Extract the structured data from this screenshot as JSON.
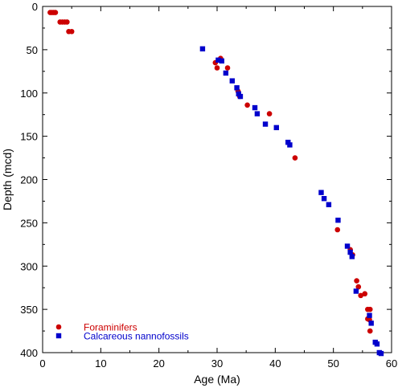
{
  "chart_data": {
    "type": "scatter",
    "title": "",
    "xlabel": "Age (Ma)",
    "ylabel": "Depth (mcd)",
    "xlim": [
      0,
      60
    ],
    "ylim": [
      0,
      400
    ],
    "y_inverted": true,
    "x_ticks": [
      0,
      10,
      20,
      30,
      40,
      50,
      60
    ],
    "y_ticks": [
      0,
      50,
      100,
      150,
      200,
      250,
      300,
      350,
      400
    ],
    "grid": false,
    "legend_position": "bottom-left",
    "series": [
      {
        "name": "Foraminifers",
        "marker": "circle",
        "color": "#cc0000",
        "points": [
          [
            1.3,
            7
          ],
          [
            1.6,
            7
          ],
          [
            1.9,
            7
          ],
          [
            2.2,
            7
          ],
          [
            3.0,
            18
          ],
          [
            3.4,
            18
          ],
          [
            3.8,
            18
          ],
          [
            4.2,
            18
          ],
          [
            4.5,
            29
          ],
          [
            5.0,
            29
          ],
          [
            29.7,
            65
          ],
          [
            30.0,
            71
          ],
          [
            30.6,
            60
          ],
          [
            31.8,
            71
          ],
          [
            33.6,
            98
          ],
          [
            33.9,
            104
          ],
          [
            35.2,
            114
          ],
          [
            39.0,
            124
          ],
          [
            43.4,
            175
          ],
          [
            50.7,
            258
          ],
          [
            52.9,
            281
          ],
          [
            53.3,
            287
          ],
          [
            54.0,
            317
          ],
          [
            54.3,
            324
          ],
          [
            54.7,
            334
          ],
          [
            55.4,
            332
          ],
          [
            55.9,
            350
          ],
          [
            56.3,
            350
          ],
          [
            55.9,
            361
          ],
          [
            56.2,
            362
          ],
          [
            56.3,
            375
          ]
        ]
      },
      {
        "name": "Calcareous nannofossils",
        "marker": "square",
        "color": "#0000cc",
        "points": [
          [
            27.5,
            49
          ],
          [
            30.2,
            62
          ],
          [
            30.8,
            63
          ],
          [
            31.5,
            77
          ],
          [
            32.6,
            86
          ],
          [
            33.4,
            94
          ],
          [
            33.7,
            101
          ],
          [
            34.0,
            104
          ],
          [
            36.5,
            117
          ],
          [
            36.9,
            124
          ],
          [
            38.3,
            136
          ],
          [
            40.2,
            140
          ],
          [
            42.2,
            157
          ],
          [
            42.5,
            160
          ],
          [
            47.9,
            215
          ],
          [
            48.4,
            222
          ],
          [
            49.2,
            229
          ],
          [
            50.8,
            247
          ],
          [
            52.4,
            277
          ],
          [
            52.9,
            284
          ],
          [
            53.2,
            289
          ],
          [
            53.9,
            329
          ],
          [
            56.2,
            357
          ],
          [
            56.5,
            366
          ],
          [
            57.2,
            388
          ],
          [
            57.5,
            390
          ],
          [
            57.9,
            400
          ],
          [
            58.2,
            401
          ]
        ]
      }
    ]
  }
}
